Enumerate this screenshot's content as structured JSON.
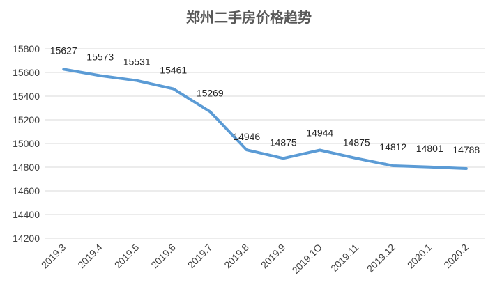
{
  "chart_data": {
    "type": "line",
    "title": "郑州二手房价格趋势",
    "xlabel": "",
    "ylabel": "",
    "categories": [
      "2019.3",
      "2019.4",
      "2019.5",
      "2019.6",
      "2019.7",
      "2019.8",
      "2019.9",
      "2019.1O",
      "2019.11",
      "2019.12",
      "2020.1",
      "2020.2"
    ],
    "series": [
      {
        "values": [
          15627,
          15573,
          15531,
          15461,
          15269,
          14946,
          14875,
          14944,
          14875,
          14812,
          14801,
          14788
        ]
      }
    ],
    "data_labels": [
      "15627",
      "15573",
      "15531",
      "15461",
      "15269",
      "14946",
      "14875",
      "14944",
      "14875",
      "14812",
      "14801",
      "14788"
    ],
    "ylim": [
      14200,
      15800
    ],
    "yticks": [
      14200,
      14400,
      14600,
      14800,
      15000,
      15200,
      15400,
      15600,
      15800
    ],
    "grid": true,
    "legend": "none",
    "line_color": "#5b9bd5"
  }
}
